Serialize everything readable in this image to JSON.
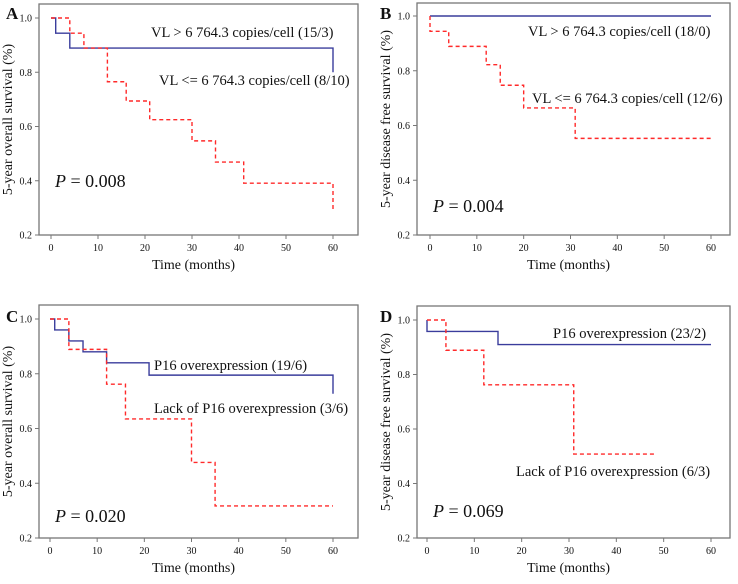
{
  "colors": {
    "high_group": "#3a3d9c",
    "low_group": "#ff2a2a",
    "frame": "#777777"
  },
  "chart_data": [
    {
      "panel": "A",
      "type": "line",
      "step": true,
      "xlabel": "Time  (months)",
      "ylabel": "5-year overall survival  (%)",
      "xlim": [
        0,
        60
      ],
      "ylim": [
        0.2,
        1.0
      ],
      "xticks": [
        "0",
        "10",
        "20",
        "30",
        "40",
        "50",
        "60"
      ],
      "yticks": [
        "0.2",
        "0.4",
        "0.6",
        "0.8",
        "1.0"
      ],
      "p_label": "P",
      "p_value": " = 0.008",
      "series": [
        {
          "name": "VL > 6 764.3 copies/cell (15/3)",
          "style": "solid",
          "points": [
            [
              0,
              1.0
            ],
            [
              1,
              0.944
            ],
            [
              4,
              0.889
            ],
            [
              60,
              0.889
            ],
            [
              60,
              0.8
            ]
          ]
        },
        {
          "name": "VL <= 6 764.3 copies/cell (8/10)",
          "style": "dashed",
          "points": [
            [
              0,
              1.0
            ],
            [
              4,
              0.944
            ],
            [
              7,
              0.889
            ],
            [
              12,
              0.765
            ],
            [
              16,
              0.694
            ],
            [
              21,
              0.625
            ],
            [
              30,
              0.547
            ],
            [
              35,
              0.469
            ],
            [
              41,
              0.391
            ],
            [
              60,
              0.391
            ],
            [
              60,
              0.293
            ]
          ]
        }
      ]
    },
    {
      "panel": "B",
      "type": "line",
      "step": true,
      "xlabel": "Time  (months)",
      "ylabel": "5-year disease free survival  (%)",
      "xlim": [
        0,
        60
      ],
      "ylim": [
        0.2,
        1.0
      ],
      "xticks": [
        "0",
        "10",
        "20",
        "30",
        "40",
        "50",
        "60"
      ],
      "yticks": [
        "0.2",
        "0.4",
        "0.6",
        "0.8",
        "1.0"
      ],
      "p_label": "P",
      "p_value": " = 0.004",
      "series": [
        {
          "name": "VL > 6 764.3 copies/cell  (18/0)",
          "style": "solid",
          "points": [
            [
              0,
              1.0
            ],
            [
              60,
              1.0
            ]
          ]
        },
        {
          "name": "VL <= 6 764.3 copies/cell  (12/6)",
          "style": "dashed",
          "points": [
            [
              0,
              1.0
            ],
            [
              0,
              0.944
            ],
            [
              4,
              0.889
            ],
            [
              12,
              0.822
            ],
            [
              15,
              0.747
            ],
            [
              20,
              0.664
            ],
            [
              31,
              0.553
            ],
            [
              60,
              0.553
            ]
          ]
        }
      ]
    },
    {
      "panel": "C",
      "type": "line",
      "step": true,
      "xlabel": "Time  (months)",
      "ylabel": "5-year overall survival  (%)",
      "xlim": [
        0,
        60
      ],
      "ylim": [
        0.2,
        1.0
      ],
      "xticks": [
        "0",
        "10",
        "20",
        "30",
        "40",
        "50",
        "60"
      ],
      "yticks": [
        "0.2",
        "0.4",
        "0.6",
        "0.8",
        "1.0"
      ],
      "p_label": "P",
      "p_value": " = 0.020",
      "series": [
        {
          "name": "P16 overexpression (19/6)",
          "style": "solid",
          "points": [
            [
              0,
              1.0
            ],
            [
              1,
              0.96
            ],
            [
              4,
              0.92
            ],
            [
              7,
              0.88
            ],
            [
              12,
              0.84
            ],
            [
              21,
              0.795
            ],
            [
              60,
              0.795
            ],
            [
              60,
              0.727
            ]
          ]
        },
        {
          "name": "Lack of P16 overexpression (3/6)",
          "style": "dashed",
          "points": [
            [
              0,
              1.0
            ],
            [
              4,
              0.889
            ],
            [
              12,
              0.762
            ],
            [
              16,
              0.635
            ],
            [
              30,
              0.476
            ],
            [
              35,
              0.317
            ],
            [
              60,
              0.317
            ]
          ]
        }
      ]
    },
    {
      "panel": "D",
      "type": "line",
      "step": true,
      "xlabel": "Time  (months)",
      "ylabel": "5-year disease free survival  (%)",
      "xlim": [
        0,
        60
      ],
      "ylim": [
        0.2,
        1.0
      ],
      "xticks": [
        "0",
        "10",
        "20",
        "30",
        "40",
        "50",
        "60"
      ],
      "yticks": [
        "0.2",
        "0.4",
        "0.6",
        "0.8",
        "1.0"
      ],
      "p_label": "P",
      "p_value": " = 0.069",
      "series": [
        {
          "name": "P16 overexpression (23/2)",
          "style": "solid",
          "points": [
            [
              0,
              1.0
            ],
            [
              0,
              0.958
            ],
            [
              15,
              0.91
            ],
            [
              60,
              0.91
            ]
          ]
        },
        {
          "name": "Lack of P16 overexpression (6/3)",
          "style": "dashed",
          "points": [
            [
              0,
              1.0
            ],
            [
              4,
              0.889
            ],
            [
              12,
              0.762
            ],
            [
              31,
              0.508
            ],
            [
              48,
              0.508
            ]
          ]
        }
      ]
    }
  ]
}
